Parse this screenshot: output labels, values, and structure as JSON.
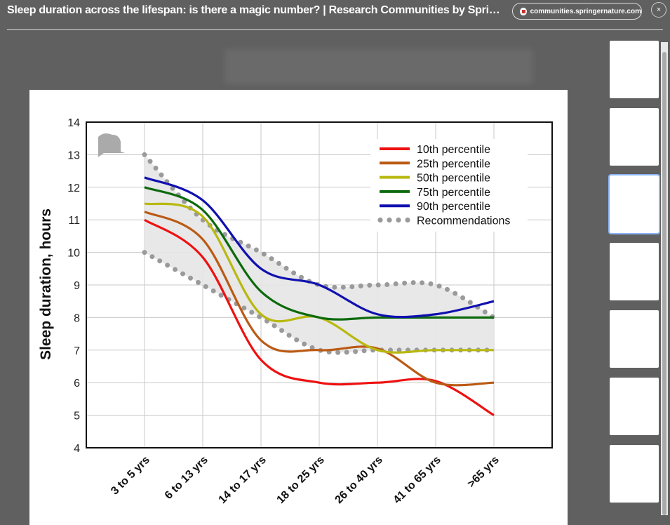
{
  "header": {
    "title": "Sleep duration across the lifespan: is there a magic number? | Research Communities by Springer Nature",
    "source_pill": "communities.springernature.com",
    "close_label": "×"
  },
  "thumbnails": [
    "scatter-maps",
    "bar-chart",
    "sleep-duration-chart",
    "bar-grid",
    "scatter-distribution",
    "bar-comparison",
    "scatter-plot"
  ],
  "chart_data": {
    "type": "line",
    "title": "",
    "xlabel": "",
    "ylabel": "Sleep duration, hours",
    "ylim": [
      4,
      14
    ],
    "yticks": [
      "4",
      "5",
      "6",
      "7",
      "8",
      "9",
      "10",
      "11",
      "12",
      "13",
      "14"
    ],
    "categories": [
      "3 to 5 yrs",
      "6 to 13 yrs",
      "14 to 17 yrs",
      "18 to 25 yrs",
      "26 to 40 yrs",
      "41 to 65 yrs",
      ">65 yrs"
    ],
    "grid": true,
    "legend_position": "top-right",
    "series": [
      {
        "name": "10th percentile",
        "color": "#ee1111",
        "values": [
          11,
          9.85,
          6.7,
          6.0,
          6.0,
          6.05,
          5
        ]
      },
      {
        "name": "25th percentile",
        "color": "#bb5a14",
        "values": [
          11.25,
          10.4,
          7.3,
          7.0,
          7.05,
          6.0,
          6
        ]
      },
      {
        "name": "50th percentile",
        "color": "#b8b810",
        "values": [
          11.5,
          11.1,
          8.1,
          8.0,
          7.0,
          7.0,
          7
        ]
      },
      {
        "name": "75th percentile",
        "color": "#0d6a0d",
        "values": [
          12,
          11.3,
          8.8,
          8.0,
          8.0,
          8.0,
          8
        ]
      },
      {
        "name": "90th percentile",
        "color": "#1010b0",
        "values": [
          12.3,
          11.6,
          9.5,
          9.0,
          8.1,
          8.1,
          8.5
        ]
      }
    ],
    "recommendations": {
      "name": "Recommendations",
      "color": "#9a9a9a",
      "upper": [
        13,
        11,
        10,
        9,
        9,
        9,
        8
      ],
      "lower": [
        10,
        9,
        8,
        7,
        7,
        7,
        7
      ]
    }
  }
}
